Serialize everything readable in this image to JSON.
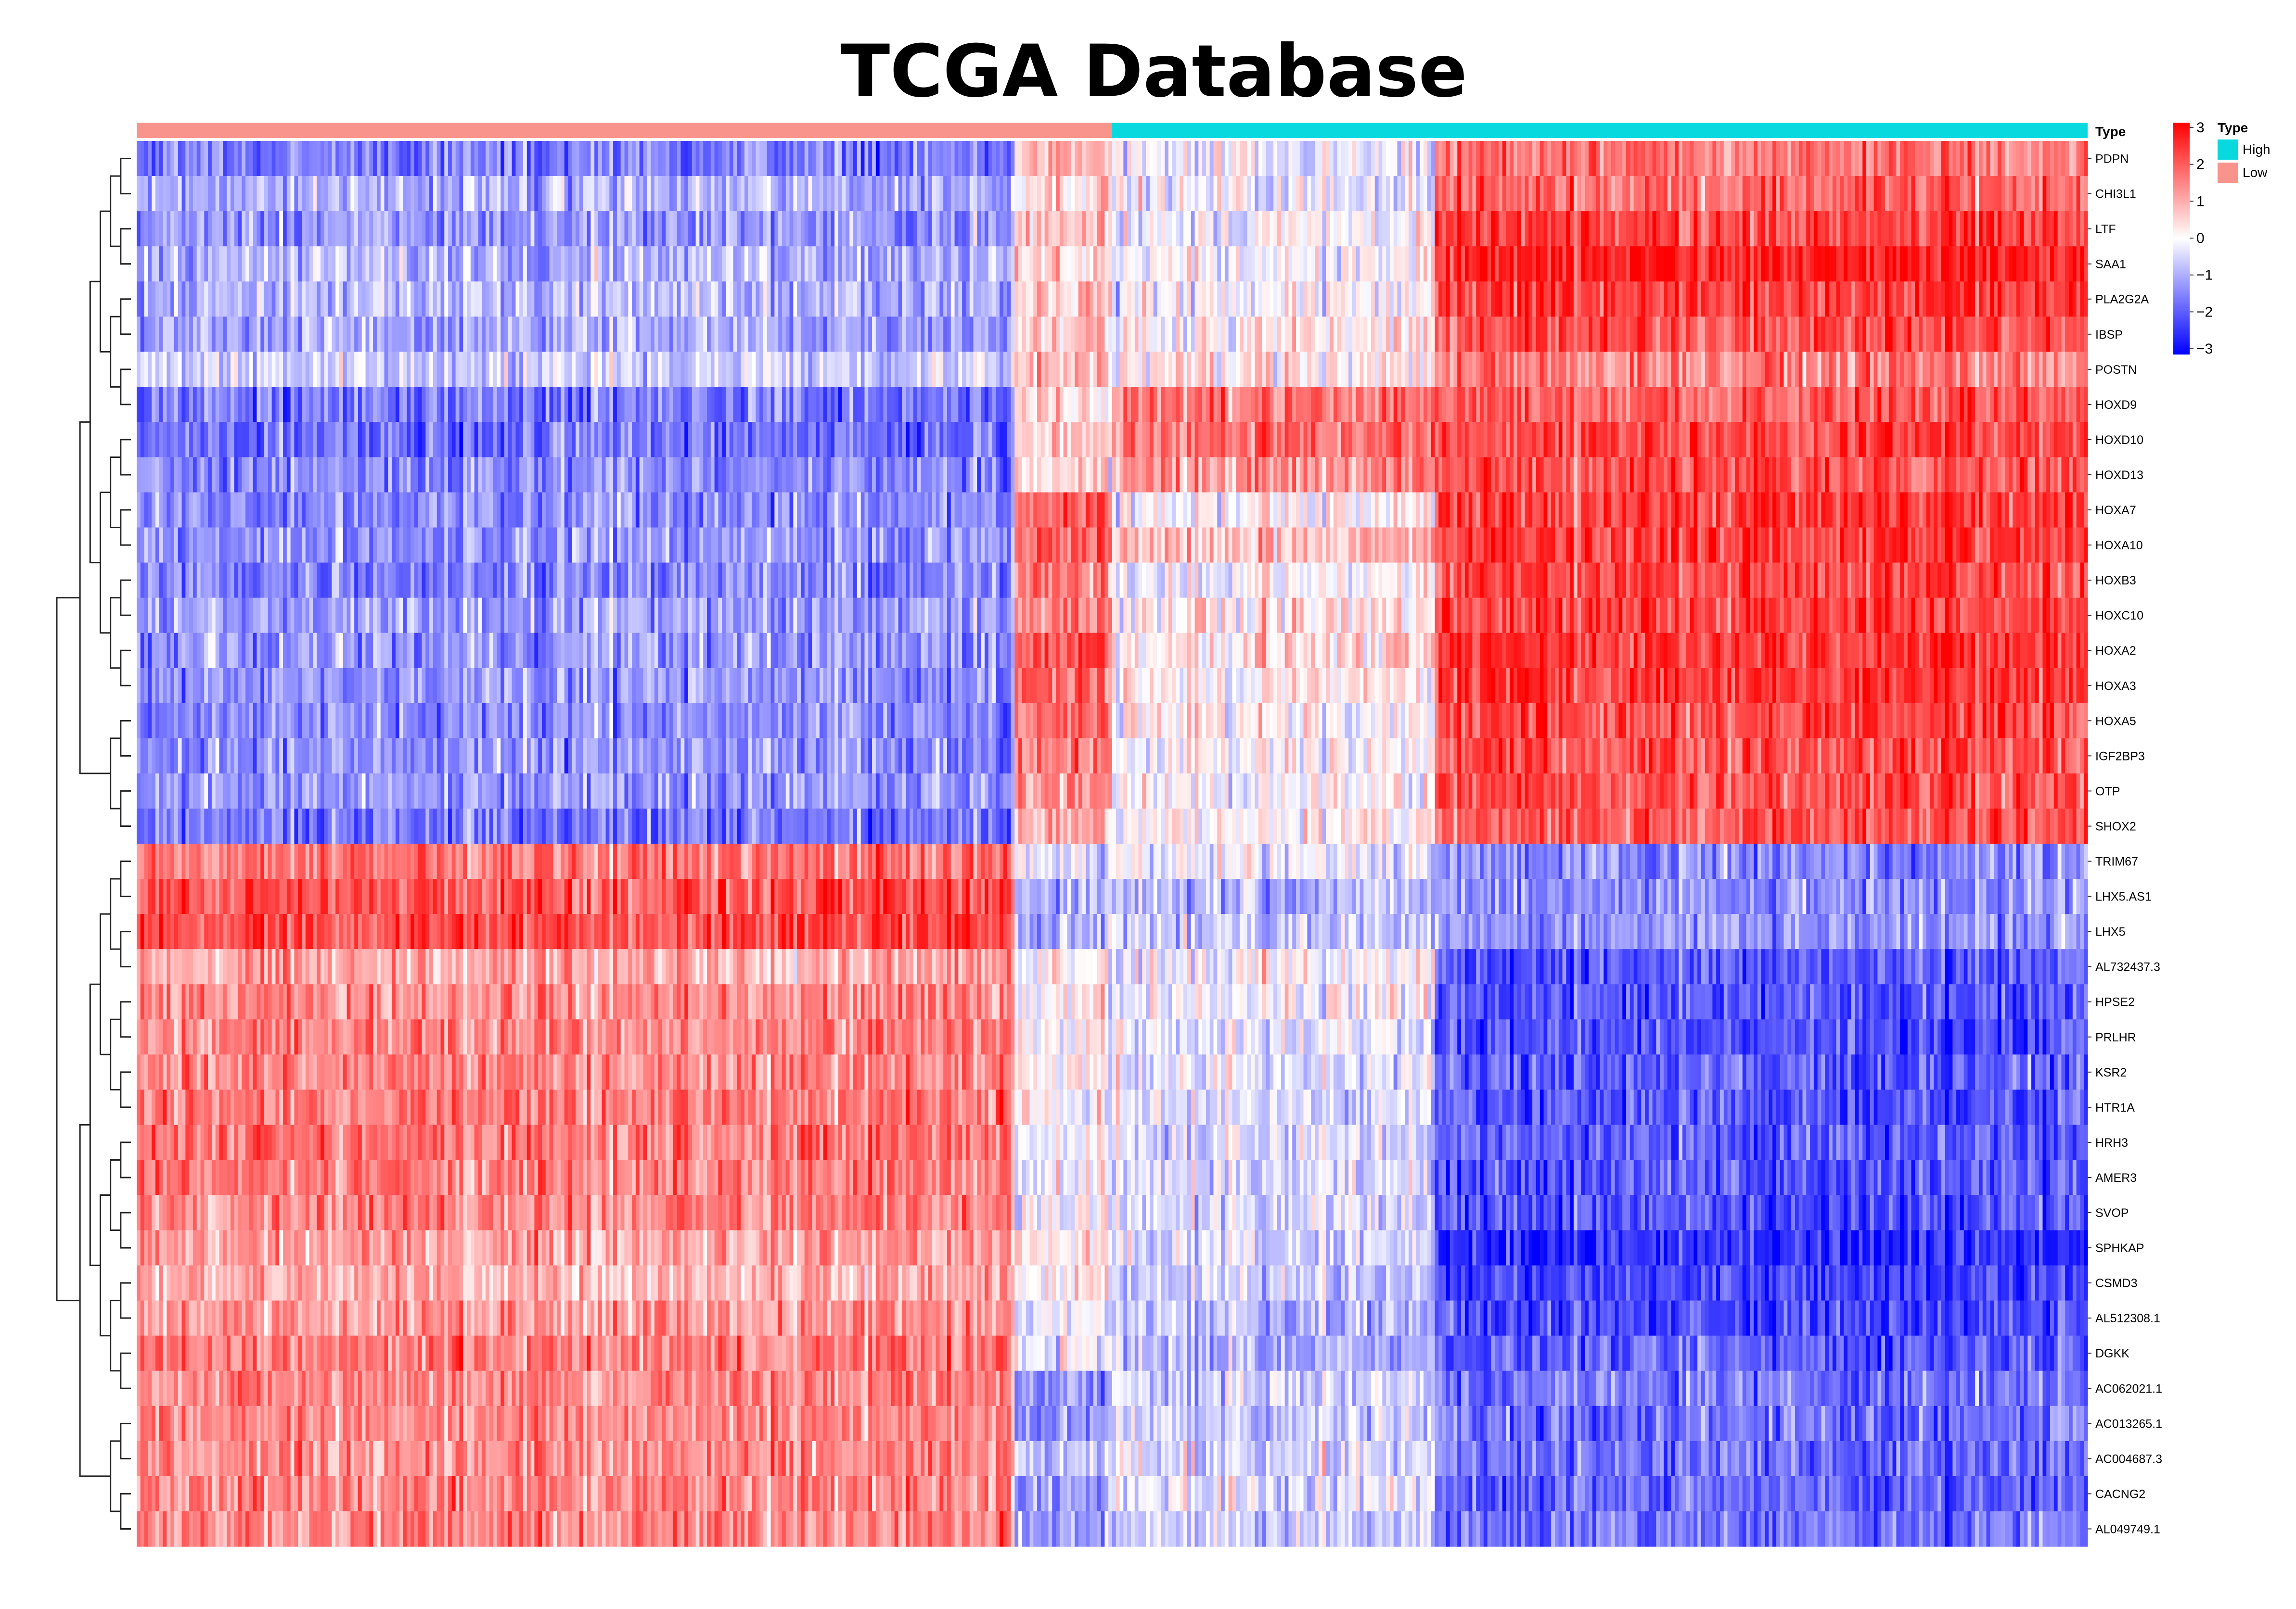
{
  "chart_data": {
    "type": "heatmap",
    "title": "TCGA Database",
    "annotation": {
      "label": "Type",
      "groups": [
        {
          "name": "Low",
          "color": "#f8948b",
          "fraction": 0.5
        },
        {
          "name": "High",
          "color": "#08d9df",
          "fraction": 0.5
        }
      ]
    },
    "column_blocks": [
      {
        "group": "Low",
        "fraction": 0.45
      },
      {
        "group": "Low",
        "fraction": 0.05
      },
      {
        "group": "High",
        "fraction": 0.165
      },
      {
        "group": "High",
        "fraction": 0.335
      }
    ],
    "genes": [
      "PDPN",
      "CHI3L1",
      "LTF",
      "SAA1",
      "PLA2G2A",
      "IBSP",
      "POSTN",
      "HOXD9",
      "HOXD10",
      "HOXD13",
      "HOXA7",
      "HOXA10",
      "HOXB3",
      "HOXC10",
      "HOXA2",
      "HOXA3",
      "HOXA5",
      "IGF2BP3",
      "OTP",
      "SHOX2",
      "TRIM67",
      "LHX5.AS1",
      "LHX5",
      "AL732437.3",
      "HPSE2",
      "PRLHR",
      "KSR2",
      "HTR1A",
      "HRH3",
      "AMER3",
      "SVOP",
      "SPHKAP",
      "CSMD3",
      "AL512308.1",
      "DGKK",
      "AC062021.1",
      "AC013265.1",
      "AC004687.3",
      "CACNG2",
      "AL049749.1"
    ],
    "block_means": [
      [
        -1.5,
        0.9,
        -0.3,
        1.6
      ],
      [
        -0.9,
        0.7,
        -0.2,
        1.8
      ],
      [
        -1.2,
        0.8,
        0.0,
        2.2
      ],
      [
        -0.8,
        0.6,
        0.0,
        2.6
      ],
      [
        -0.8,
        0.8,
        0.0,
        2.3
      ],
      [
        -1.0,
        0.8,
        0.2,
        2.1
      ],
      [
        -0.5,
        1.0,
        0.3,
        1.5
      ],
      [
        -1.6,
        0.6,
        1.6,
        1.9
      ],
      [
        -1.6,
        0.6,
        1.7,
        2.2
      ],
      [
        -1.3,
        0.5,
        1.3,
        2.1
      ],
      [
        -1.3,
        1.8,
        0.0,
        2.3
      ],
      [
        -1.2,
        2.0,
        0.8,
        2.3
      ],
      [
        -1.4,
        1.6,
        0.0,
        2.2
      ],
      [
        -1.1,
        1.7,
        0.3,
        2.2
      ],
      [
        -1.2,
        2.2,
        0.4,
        2.4
      ],
      [
        -1.2,
        1.9,
        0.2,
        2.4
      ],
      [
        -1.3,
        1.8,
        0.2,
        2.2
      ],
      [
        -1.3,
        1.6,
        0.0,
        2.1
      ],
      [
        -1.2,
        1.5,
        0.0,
        2.1
      ],
      [
        -1.6,
        1.0,
        0.2,
        2.0
      ],
      [
        1.6,
        -0.5,
        -0.2,
        -1.4
      ],
      [
        2.0,
        -0.9,
        -0.8,
        -1.3
      ],
      [
        2.1,
        -0.9,
        -0.6,
        -1.2
      ],
      [
        1.0,
        0.4,
        0.0,
        -2.0
      ],
      [
        1.3,
        0.3,
        0.0,
        -2.0
      ],
      [
        1.4,
        0.3,
        -0.2,
        -2.1
      ],
      [
        1.4,
        0.3,
        -0.3,
        -1.9
      ],
      [
        1.5,
        0.1,
        -0.4,
        -2.0
      ],
      [
        1.6,
        0.0,
        -0.4,
        -1.9
      ],
      [
        1.5,
        0.0,
        -0.4,
        -2.0
      ],
      [
        1.5,
        0.0,
        -0.5,
        -2.1
      ],
      [
        1.1,
        0.4,
        -0.5,
        -2.5
      ],
      [
        0.9,
        0.2,
        -0.6,
        -2.2
      ],
      [
        1.2,
        0.0,
        -0.8,
        -2.2
      ],
      [
        1.5,
        -0.2,
        -0.9,
        -1.9
      ],
      [
        1.4,
        -1.4,
        -0.5,
        -1.6
      ],
      [
        1.4,
        -1.5,
        -0.6,
        -1.6
      ],
      [
        1.3,
        -0.9,
        -0.4,
        -1.7
      ],
      [
        1.4,
        -1.4,
        -0.3,
        -1.8
      ],
      [
        1.4,
        -1.3,
        -0.6,
        -1.6
      ]
    ],
    "scale": {
      "min": -3,
      "max": 3,
      "ticks": [
        3,
        2,
        1,
        0,
        -1,
        -2,
        -3
      ],
      "colors": [
        "#0000ff",
        "#ffffff",
        "#ff0000"
      ]
    },
    "n_columns": 520
  }
}
